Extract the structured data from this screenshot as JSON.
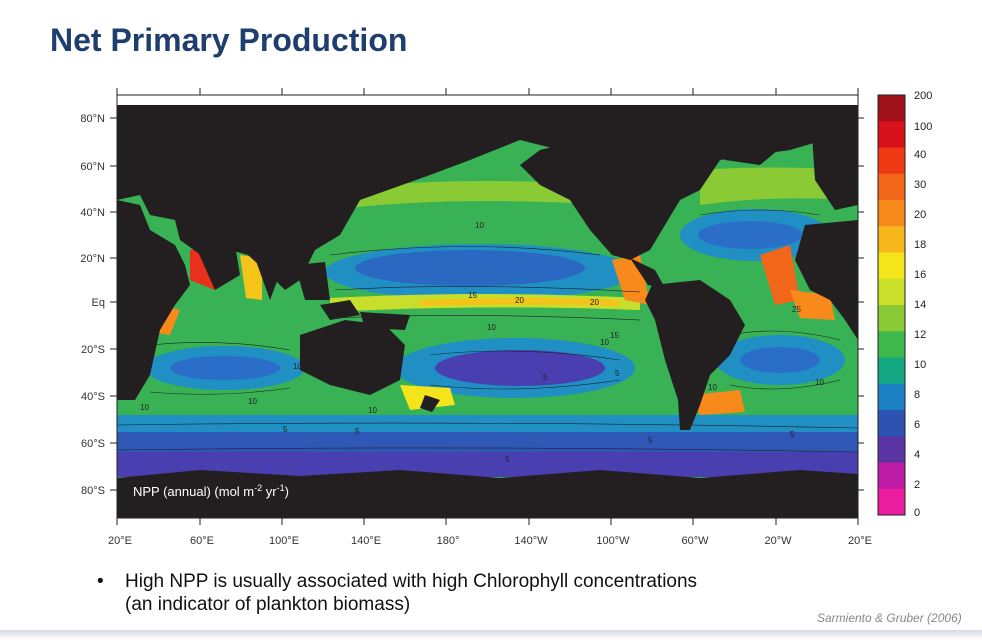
{
  "slide": {
    "title": "Net Primary Production",
    "bullet": "High NPP is usually associated with high Chlorophyll concentrations",
    "bullet_cont": "(an indicator of plankton biomass)",
    "citation": "Sarmiento & Gruber (2006)"
  },
  "map": {
    "legend_label_main": "NPP (annual) (mol m",
    "legend_sup1": "-2",
    "legend_mid": " yr",
    "legend_sup2": "-1",
    "legend_close": ")",
    "lat_labels": [
      "80°N",
      "60°N",
      "40°N",
      "20°N",
      "Eq",
      "20°S",
      "40°S",
      "60°S",
      "80°S"
    ],
    "lon_labels": [
      "20°E",
      "60°E",
      "100°E",
      "140°E",
      "180°",
      "140°W",
      "100°W",
      "60°W",
      "20°W",
      "20°E"
    ],
    "contour_labels": [
      "10",
      "15",
      "20",
      "20",
      "25",
      "10",
      "10",
      "15",
      "10",
      "10",
      "10",
      "5",
      "5",
      "5",
      "5",
      "5",
      "5",
      "5",
      "10",
      "10",
      "10"
    ]
  },
  "colorbar": {
    "ticks": [
      "200",
      "100",
      "40",
      "30",
      "20",
      "18",
      "16",
      "14",
      "12",
      "10",
      "8",
      "6",
      "4",
      "2",
      "0"
    ],
    "colors": [
      "#a01018",
      "#d8101a",
      "#f03a14",
      "#f2661a",
      "#f88a1c",
      "#f8b81c",
      "#f4e41a",
      "#cbe02a",
      "#8acb35",
      "#3fb94c",
      "#14a882",
      "#1c80c4",
      "#2c52b4",
      "#5a34a2",
      "#be1ca6",
      "#ec1ca0"
    ]
  }
}
